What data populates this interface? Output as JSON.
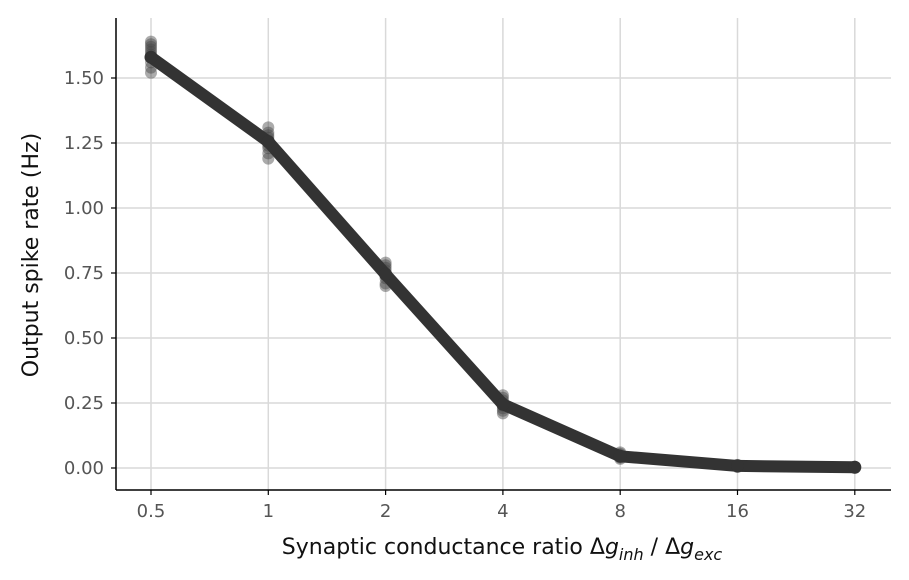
{
  "chart_data": {
    "type": "line",
    "title": "",
    "xlabel": {
      "prefix": "Synaptic conductance ratio  ",
      "delta1": "Δ",
      "var1": "g",
      "sub1": "inh",
      "sep": " / ",
      "delta2": "Δ",
      "var2": "g",
      "sub2": "exc"
    },
    "ylabel": "Output spike rate (Hz)",
    "x_scale": "log2",
    "categories": [
      "0.5",
      "1",
      "2",
      "4",
      "8",
      "16",
      "32"
    ],
    "x": [
      0.5,
      1,
      2,
      4,
      8,
      16,
      32
    ],
    "ylim": [
      -0.08,
      1.72
    ],
    "yticks": [
      0.0,
      0.25,
      0.5,
      0.75,
      1.0,
      1.25,
      1.5
    ],
    "ytick_labels": [
      "0.00",
      "0.25",
      "0.50",
      "0.75",
      "1.00",
      "1.25",
      "1.50"
    ],
    "grid": true,
    "series": [
      {
        "values": [
          1.58,
          1.255,
          0.745,
          0.245,
          0.045,
          0.008,
          0.003
        ]
      }
    ],
    "samples": [
      [
        1.52,
        1.54,
        1.56,
        1.58,
        1.59,
        1.6,
        1.61,
        1.62,
        1.63,
        1.64
      ],
      [
        1.19,
        1.21,
        1.23,
        1.24,
        1.25,
        1.26,
        1.27,
        1.28,
        1.29,
        1.31
      ],
      [
        0.7,
        0.71,
        0.73,
        0.74,
        0.75,
        0.76,
        0.77,
        0.78,
        0.79
      ],
      [
        0.21,
        0.22,
        0.23,
        0.24,
        0.25,
        0.26,
        0.27,
        0.28
      ],
      [
        0.035,
        0.04,
        0.045,
        0.05,
        0.055,
        0.06
      ],
      [
        0.004,
        0.006,
        0.008,
        0.01,
        0.012
      ],
      [
        0.001,
        0.002,
        0.003,
        0.004,
        0.005
      ]
    ],
    "colors": {
      "line": "#333333",
      "points": "#444444",
      "grid": "#d9d9d9"
    }
  }
}
